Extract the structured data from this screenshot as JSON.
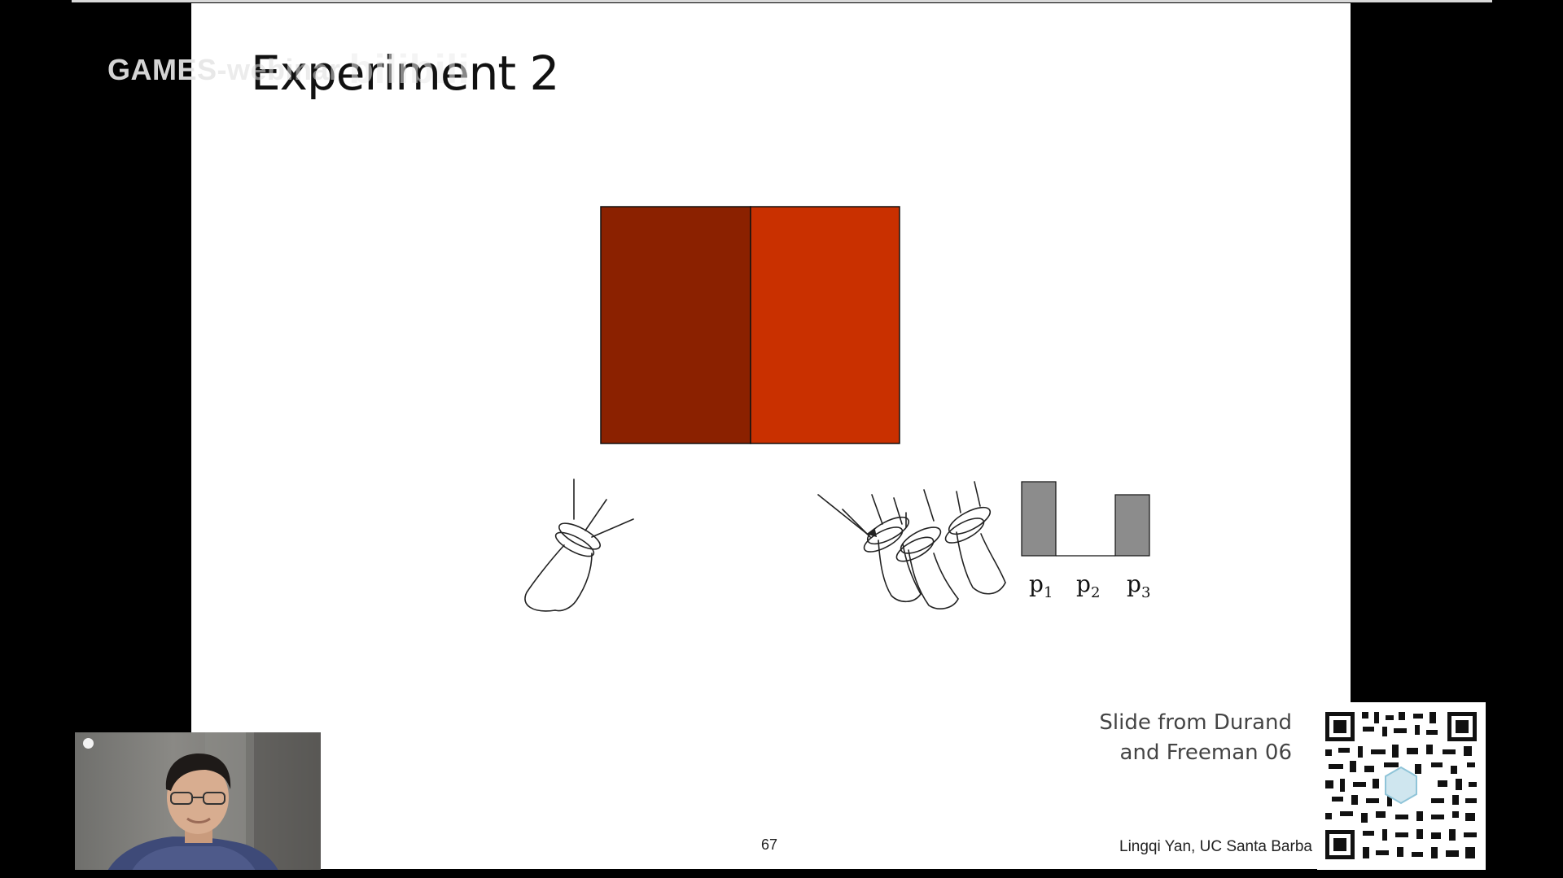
{
  "overlay": {
    "watermark_text": "GAMES",
    "watermark_faded": "-webinar",
    "watermark_logo": "bilibili"
  },
  "slide": {
    "title": "Experiment 2",
    "bar_labels": {
      "p1": {
        "base": "p",
        "sub": "1"
      },
      "p2": {
        "base": "p",
        "sub": "2"
      },
      "p3": {
        "base": "p",
        "sub": "3"
      }
    },
    "credit_line1": "Slide from Durand",
    "credit_line2": "and Freeman 06",
    "page_number": "67",
    "author": "Lingqi Yan, UC Santa Barba"
  },
  "colors": {
    "left_square": "#8b2100",
    "right_square": "#c93000",
    "bar_fill": "#8c8c8c",
    "background": "#000000",
    "slide_bg": "#ffffff"
  },
  "icons": [
    "qr-code-icon",
    "camera-dot-icon"
  ]
}
